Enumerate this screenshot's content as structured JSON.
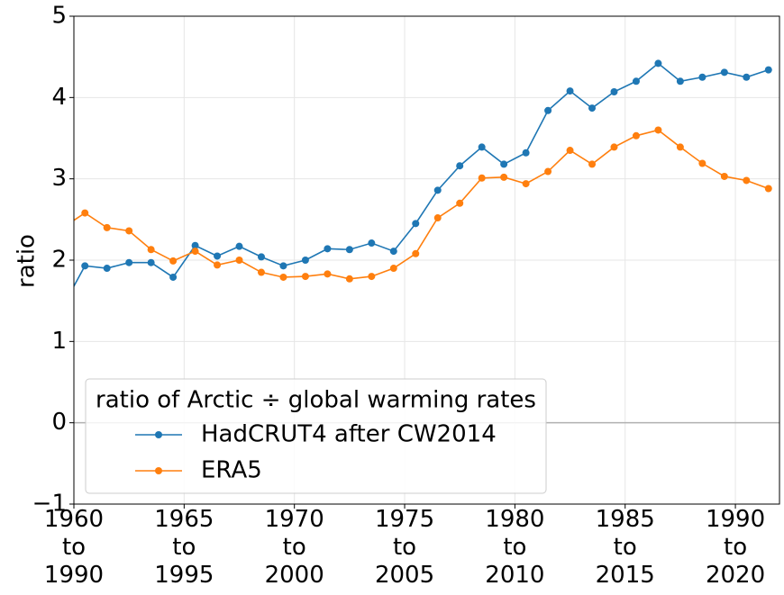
{
  "chart_data": {
    "type": "line",
    "ylabel": "ratio",
    "legend_title": "ratio of Arctic ÷ global warming rates",
    "legend_loc": "lower left",
    "grid": true,
    "reference_line": 0,
    "xlim": [
      1960,
      1992
    ],
    "ylim": [
      -1,
      5
    ],
    "xticks": [
      {
        "value": 1960,
        "label": "1960\nto\n1990"
      },
      {
        "value": 1965,
        "label": "1965\nto\n1995"
      },
      {
        "value": 1970,
        "label": "1970\nto\n2000"
      },
      {
        "value": 1975,
        "label": "1975\nto\n2005"
      },
      {
        "value": 1980,
        "label": "1980\nto\n2010"
      },
      {
        "value": 1985,
        "label": "1985\nto\n2015"
      },
      {
        "value": 1990,
        "label": "1990\nto\n2020"
      }
    ],
    "yticks": [
      {
        "value": -1,
        "label": "−1"
      },
      0,
      1,
      2,
      3,
      4,
      5
    ],
    "x": [
      1959.5,
      1960.5,
      1961.5,
      1962.5,
      1963.5,
      1964.5,
      1965.5,
      1966.5,
      1967.5,
      1968.5,
      1969.5,
      1970.5,
      1971.5,
      1972.5,
      1973.5,
      1974.5,
      1975.5,
      1976.5,
      1977.5,
      1978.5,
      1979.5,
      1980.5,
      1981.5,
      1982.5,
      1983.5,
      1984.5,
      1985.5,
      1986.5,
      1987.5,
      1988.5,
      1989.5,
      1990.5,
      1991.5
    ],
    "series": [
      {
        "name": "HadCRUT4 after CW2014",
        "color": "#1f77b4",
        "values": [
          1.43,
          1.93,
          1.9,
          1.97,
          1.97,
          1.79,
          2.18,
          2.05,
          2.17,
          2.04,
          1.93,
          2.0,
          2.14,
          2.13,
          2.21,
          2.11,
          2.45,
          2.86,
          3.16,
          3.39,
          3.18,
          3.32,
          3.84,
          4.08,
          3.87,
          4.07,
          4.2,
          4.42,
          4.2,
          4.25,
          4.31,
          4.25,
          4.34
        ]
      },
      {
        "name": "ERA5",
        "color": "#ff7f0e",
        "values": [
          2.4,
          2.58,
          2.4,
          2.36,
          2.13,
          1.99,
          2.11,
          1.94,
          2.0,
          1.85,
          1.79,
          1.8,
          1.83,
          1.77,
          1.8,
          1.9,
          2.08,
          2.52,
          2.7,
          3.01,
          3.02,
          2.94,
          3.09,
          3.35,
          3.18,
          3.39,
          3.53,
          3.6,
          3.39,
          3.19,
          3.03,
          2.98,
          2.88
        ]
      }
    ]
  }
}
